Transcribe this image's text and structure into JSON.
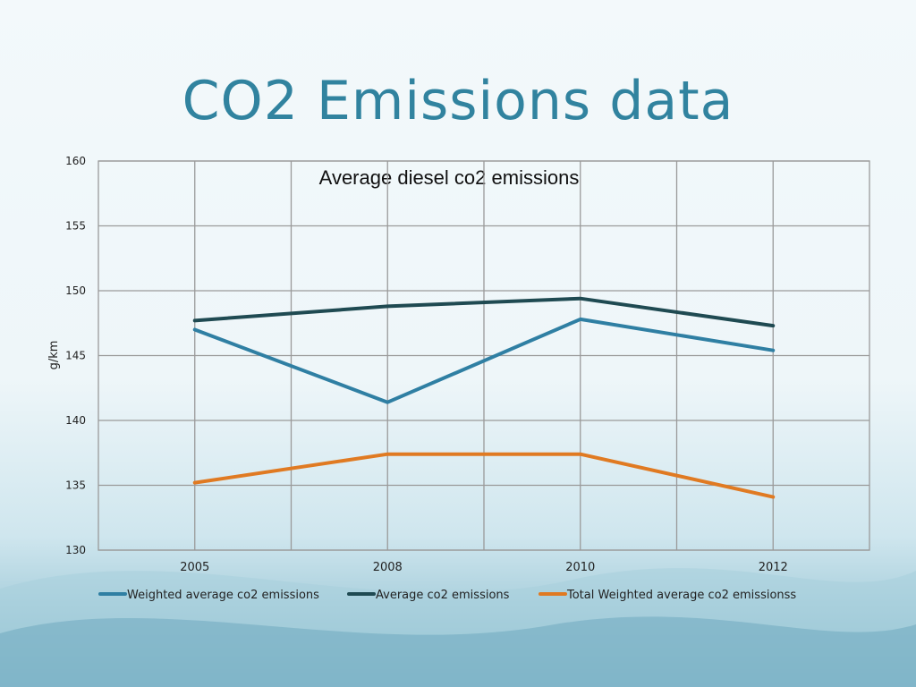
{
  "slide": {
    "title": "CO2 Emissions data"
  },
  "colors": {
    "weighted": "#2f7fa3",
    "average": "#1f4a52",
    "total": "#e07a22",
    "grid": "#9a9a9a",
    "title": "#31839f"
  },
  "chart_data": {
    "type": "line",
    "title": "Average diesel co2 emissions",
    "xlabel": "",
    "ylabel": "g/km",
    "categories": [
      "2005",
      "2008",
      "2010",
      "2012"
    ],
    "ylim": [
      130,
      160
    ],
    "yticks": [
      130,
      135,
      140,
      145,
      150,
      155,
      160
    ],
    "grid": true,
    "legend": "bottom",
    "series": [
      {
        "name": "Weighted average co2 emissions",
        "color": "#2f7fa3",
        "values": [
          147.0,
          141.4,
          147.8,
          145.4
        ]
      },
      {
        "name": "Average co2 emissions",
        "color": "#1f4a52",
        "values": [
          147.7,
          148.8,
          149.4,
          147.3
        ]
      },
      {
        "name": "Total Weighted average co2 emissionss",
        "color": "#e07a22",
        "values": [
          135.2,
          137.4,
          137.4,
          134.1
        ]
      }
    ]
  }
}
